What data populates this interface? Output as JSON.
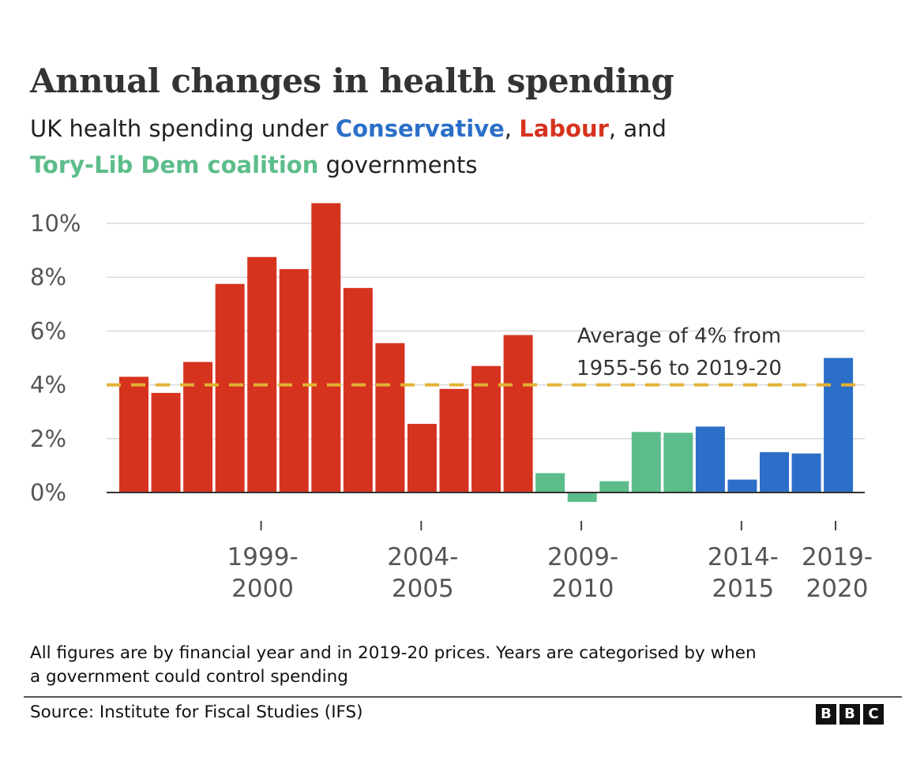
{
  "title": "Annual changes in health spending",
  "subtitle": {
    "part1": "UK health spending under ",
    "conservative": "Conservative",
    "sep1": ", ",
    "labour": "Labour",
    "sep2": ", and",
    "coalition": "Tory-Lib Dem coalition",
    "part2": " governments"
  },
  "colors": {
    "labour": "#d6331f",
    "coalition": "#5cbd8a",
    "conservative": "#2b6fc8",
    "average_line": "#e2b233",
    "grid": "#d9d9d9",
    "axis": "#333333"
  },
  "chart_data": {
    "type": "bar",
    "ylim": [
      0,
      10
    ],
    "yticks": [
      0,
      2,
      4,
      6,
      8,
      10
    ],
    "ytick_labels": [
      "0%",
      "2%",
      "4%",
      "6%",
      "8%",
      "10%"
    ],
    "grid": true,
    "values": [
      4.3,
      3.7,
      4.85,
      7.75,
      8.75,
      8.3,
      10.75,
      7.6,
      5.55,
      2.55,
      3.85,
      4.7,
      5.85,
      0.72,
      -0.35,
      0.42,
      2.25,
      2.22,
      2.45,
      0.48,
      1.5,
      1.45,
      5.0
    ],
    "government": [
      "labour",
      "labour",
      "labour",
      "labour",
      "labour",
      "labour",
      "labour",
      "labour",
      "labour",
      "labour",
      "labour",
      "labour",
      "labour",
      "coalition",
      "coalition",
      "coalition",
      "coalition",
      "coalition",
      "conservative",
      "conservative",
      "conservative",
      "conservative",
      "conservative"
    ],
    "xticks": [
      {
        "index": 2,
        "label": [
          "1999-",
          "2000"
        ]
      },
      {
        "index": 7,
        "label": [
          "2004-",
          "2005"
        ]
      },
      {
        "index": 12,
        "label": [
          "2009-",
          "2010"
        ]
      },
      {
        "index": 17,
        "label": [
          "2014-",
          "2015"
        ]
      },
      {
        "index": 22,
        "label": [
          "2019-",
          "2020"
        ]
      }
    ],
    "average": {
      "value": 4,
      "label": [
        "Average of 4% from",
        "1955-56 to 2019-20"
      ]
    }
  },
  "footnote": {
    "line1": "All figures are by financial year and in 2019-20 prices. Years are categorised by when",
    "line2": "a government could control spending"
  },
  "source": "Source: Institute for Fiscal Studies (IFS)",
  "logo": [
    "B",
    "B",
    "C"
  ]
}
